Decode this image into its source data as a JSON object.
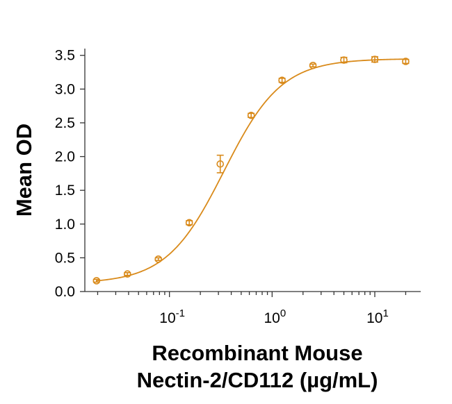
{
  "chart_data": {
    "type": "scatter",
    "title": "",
    "xlabel_line1": "Recombinant Mouse",
    "xlabel_line2": "Nectin-2/CD112 (µg/mL)",
    "ylabel": "Mean OD",
    "xscale": "log",
    "xlim": [
      0.015,
      28
    ],
    "ylim": [
      0,
      3.6
    ],
    "yticks": [
      {
        "value": 0.0,
        "label": "0.0"
      },
      {
        "value": 0.5,
        "label": "0.5"
      },
      {
        "value": 1.0,
        "label": "1.0"
      },
      {
        "value": 1.5,
        "label": "1.5"
      },
      {
        "value": 2.0,
        "label": "2.0"
      },
      {
        "value": 2.5,
        "label": "2.5"
      },
      {
        "value": 3.0,
        "label": "3.0"
      },
      {
        "value": 3.5,
        "label": "3.5"
      }
    ],
    "xticks": [
      {
        "value": 0.1,
        "base": "10",
        "exp": "-1"
      },
      {
        "value": 1,
        "base": "10",
        "exp": "0"
      },
      {
        "value": 10,
        "base": "10",
        "exp": "1"
      }
    ],
    "color": "#d98a1a",
    "series": [
      {
        "name": "Mean OD",
        "x": [
          0.0195,
          0.039,
          0.078,
          0.156,
          0.3125,
          0.625,
          1.25,
          2.5,
          5,
          10,
          20
        ],
        "y": [
          0.16,
          0.26,
          0.48,
          1.02,
          1.89,
          2.61,
          3.13,
          3.35,
          3.43,
          3.44,
          3.41
        ],
        "err": [
          0.02,
          0.02,
          0.02,
          0.03,
          0.13,
          0.03,
          0.03,
          0.02,
          0.04,
          0.04,
          0.03
        ]
      }
    ],
    "fit": {
      "type": "4PL",
      "bottom": 0.12,
      "top": 3.45,
      "ec50": 0.34,
      "hill": 1.55
    }
  }
}
